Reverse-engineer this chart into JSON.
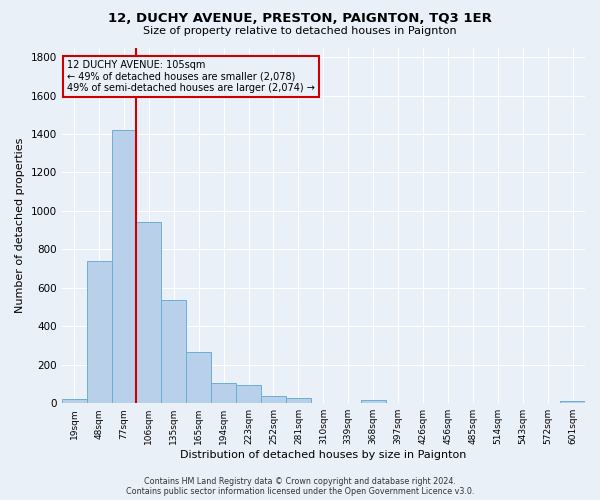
{
  "title": "12, DUCHY AVENUE, PRESTON, PAIGNTON, TQ3 1ER",
  "subtitle": "Size of property relative to detached houses in Paignton",
  "xlabel": "Distribution of detached houses by size in Paignton",
  "ylabel": "Number of detached properties",
  "bar_labels": [
    "19sqm",
    "48sqm",
    "77sqm",
    "106sqm",
    "135sqm",
    "165sqm",
    "194sqm",
    "223sqm",
    "252sqm",
    "281sqm",
    "310sqm",
    "339sqm",
    "368sqm",
    "397sqm",
    "426sqm",
    "456sqm",
    "485sqm",
    "514sqm",
    "543sqm",
    "572sqm",
    "601sqm"
  ],
  "bar_values": [
    22,
    740,
    1420,
    940,
    535,
    265,
    105,
    95,
    40,
    27,
    0,
    0,
    15,
    0,
    0,
    0,
    0,
    0,
    0,
    0,
    14
  ],
  "bar_color": "#b8d0ea",
  "bar_edge_color": "#6aaed6",
  "vline_color": "#cc0000",
  "annotation_lines": [
    "12 DUCHY AVENUE: 105sqm",
    "← 49% of detached houses are smaller (2,078)",
    "49% of semi-detached houses are larger (2,074) →"
  ],
  "annotation_box_color": "#cc0000",
  "footer_line1": "Contains HM Land Registry data © Crown copyright and database right 2024.",
  "footer_line2": "Contains public sector information licensed under the Open Government Licence v3.0.",
  "background_color": "#eaf0f8",
  "ylim": [
    0,
    1850
  ],
  "yticks": [
    0,
    200,
    400,
    600,
    800,
    1000,
    1200,
    1400,
    1600,
    1800
  ]
}
